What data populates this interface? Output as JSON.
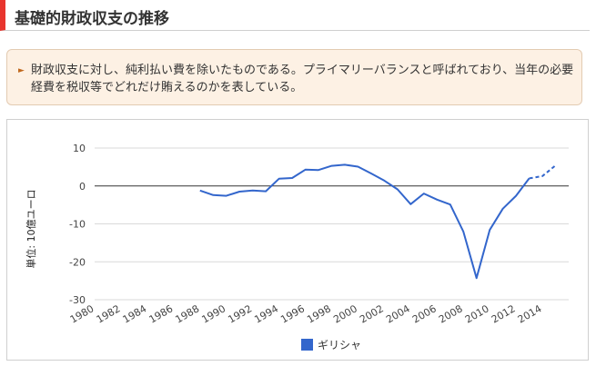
{
  "page": {
    "title": "基礎的財政収支の推移",
    "note": "財政収支に対し、純利払い費を除いたものである。プライマリーバランスと呼ばれており、当年の必要経費を税収等でどれだけ賄えるのかを表している。",
    "note_icon": "chevron-right-icon"
  },
  "colors": {
    "accent": "#e8352e",
    "series": "#3366cc",
    "note_bg": "#fdf1e4"
  },
  "chart_data": {
    "type": "line",
    "title": "",
    "xlabel": "",
    "ylabel": "単位: 10億ユーロ",
    "ylim": [
      -30,
      10
    ],
    "yticks": [
      10,
      0,
      -10,
      -20,
      -30
    ],
    "xlim": [
      1980,
      2016
    ],
    "xticks": [
      1980,
      1982,
      1984,
      1986,
      1988,
      1990,
      1992,
      1994,
      1996,
      1998,
      2000,
      2002,
      2004,
      2006,
      2008,
      2010,
      2012,
      2014
    ],
    "grid": true,
    "legend": "bottom",
    "series": [
      {
        "name": "ギリシャ",
        "color": "#3366cc",
        "x": [
          1988,
          1989,
          1990,
          1991,
          1992,
          1993,
          1994,
          1995,
          1996,
          1997,
          1998,
          1999,
          2000,
          2001,
          2002,
          2003,
          2004,
          2005,
          2006,
          2007,
          2008,
          2009,
          2010,
          2011,
          2012,
          2013
        ],
        "y": [
          -1.2,
          -2.4,
          -2.6,
          -1.5,
          -1.2,
          -1.4,
          1.9,
          2.1,
          4.3,
          4.2,
          5.3,
          5.6,
          5.1,
          3.3,
          1.4,
          -0.9,
          -4.8,
          -2.0,
          -3.6,
          -4.9,
          -12.0,
          -24.3,
          -11.6,
          -6.0,
          -2.6,
          2.0
        ],
        "forecast_x": [
          2013,
          2014,
          2015
        ],
        "forecast_y": [
          2.0,
          2.6,
          5.4
        ]
      }
    ]
  }
}
